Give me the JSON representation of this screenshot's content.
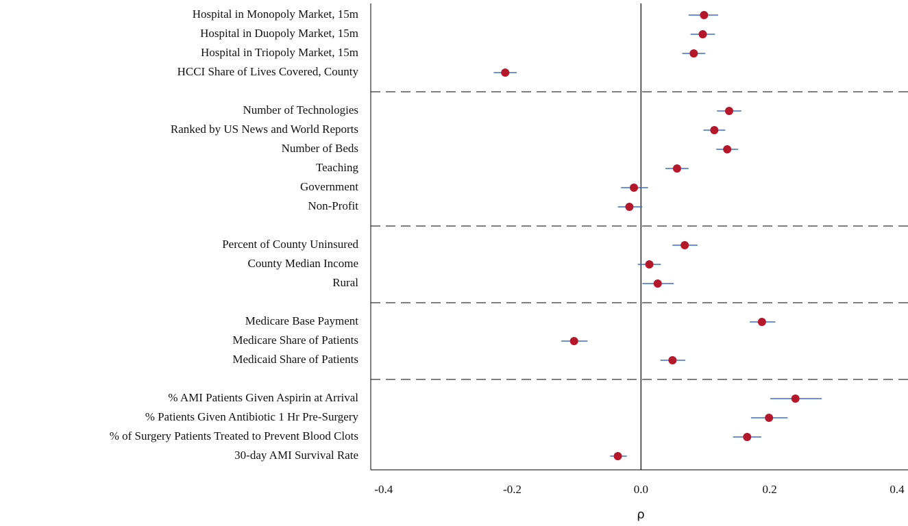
{
  "chart_data": {
    "type": "dot-whisker",
    "x_label": "ρ",
    "xlim": [
      -0.42,
      0.415
    ],
    "xticks": [
      -0.4,
      -0.2,
      {
        "value": 0,
        "label": "0.0"
      },
      0.2,
      0.4
    ],
    "vline": 0,
    "dot_color": "#b5182b",
    "whisker_color": "#3a6fc4",
    "groups": [
      {
        "categories": [
          "Hospital in Monopoly Market, 15m",
          "Hospital in Duopoly Market, 15m",
          "Hospital in Triopoly Market, 15m",
          "HCCI Share of Lives Covered, County"
        ],
        "values": [
          0.098,
          0.096,
          0.082,
          -0.211
        ],
        "lower": [
          0.074,
          0.077,
          0.064,
          -0.229
        ],
        "upper": [
          0.12,
          0.115,
          0.1,
          -0.193
        ]
      },
      {
        "categories": [
          "Number of Technologies",
          "Ranked by US News and World Reports",
          "Number of Beds",
          "Teaching",
          "Government",
          "Non-Profit"
        ],
        "values": [
          0.137,
          0.114,
          0.134,
          0.056,
          -0.011,
          -0.018
        ],
        "lower": [
          0.118,
          0.097,
          0.117,
          0.038,
          -0.031,
          -0.036
        ],
        "upper": [
          0.156,
          0.131,
          0.151,
          0.074,
          0.011,
          0.002
        ]
      },
      {
        "categories": [
          "Percent of County Uninsured",
          "County Median Income",
          "Rural"
        ],
        "values": [
          0.068,
          0.013,
          0.026
        ],
        "lower": [
          0.049,
          -0.005,
          0.002
        ],
        "upper": [
          0.088,
          0.031,
          0.051
        ]
      },
      {
        "categories": [
          "Medicare Base Payment",
          "Medicare Share of Patients",
          "Medicaid Share of Patients"
        ],
        "values": [
          0.188,
          -0.104,
          0.049
        ],
        "lower": [
          0.169,
          -0.124,
          0.03
        ],
        "upper": [
          0.209,
          -0.083,
          0.069
        ]
      },
      {
        "categories": [
          "% AMI Patients Given Aspirin at Arrival",
          "% Patients Given Antibiotic 1 Hr Pre-Surgery",
          "% of Surgery Patients Treated to Prevent Blood Clots",
          "30-day AMI Survival Rate"
        ],
        "values": [
          0.24,
          0.199,
          0.165,
          -0.036
        ],
        "lower": [
          0.201,
          0.171,
          0.143,
          -0.048
        ],
        "upper": [
          0.281,
          0.228,
          0.187,
          -0.022
        ]
      }
    ]
  }
}
